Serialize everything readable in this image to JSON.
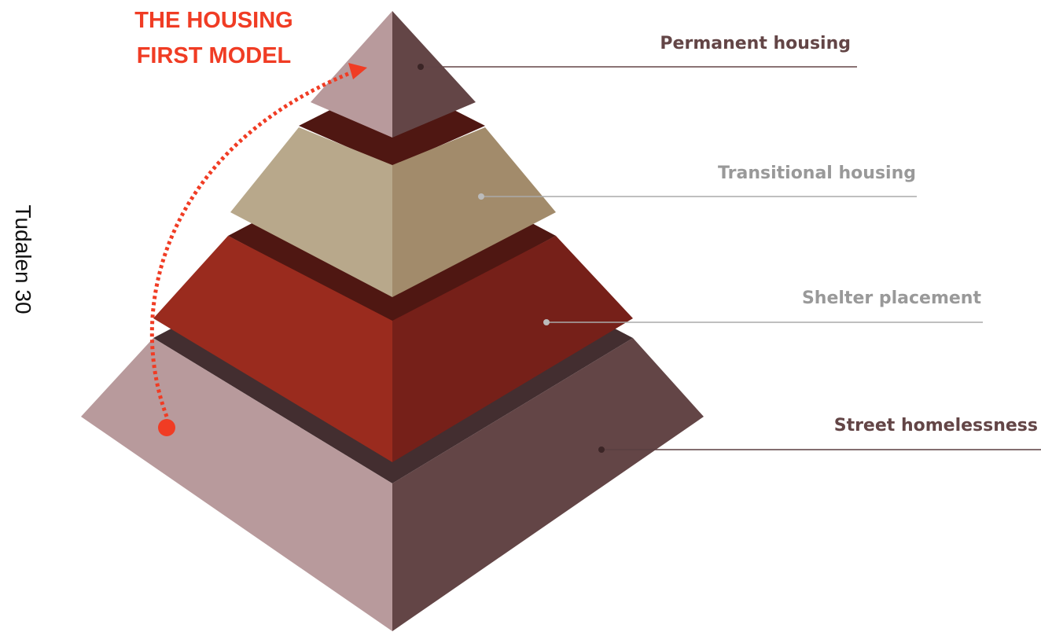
{
  "title": [
    "THE HOUSING",
    "FIRST MODEL"
  ],
  "levels": [
    {
      "label": "Permanent housing"
    },
    {
      "label": "Transitional housing"
    },
    {
      "label": "Shelter placement"
    },
    {
      "label": "Street homelessness"
    }
  ],
  "page_label": "Tudalen 30"
}
